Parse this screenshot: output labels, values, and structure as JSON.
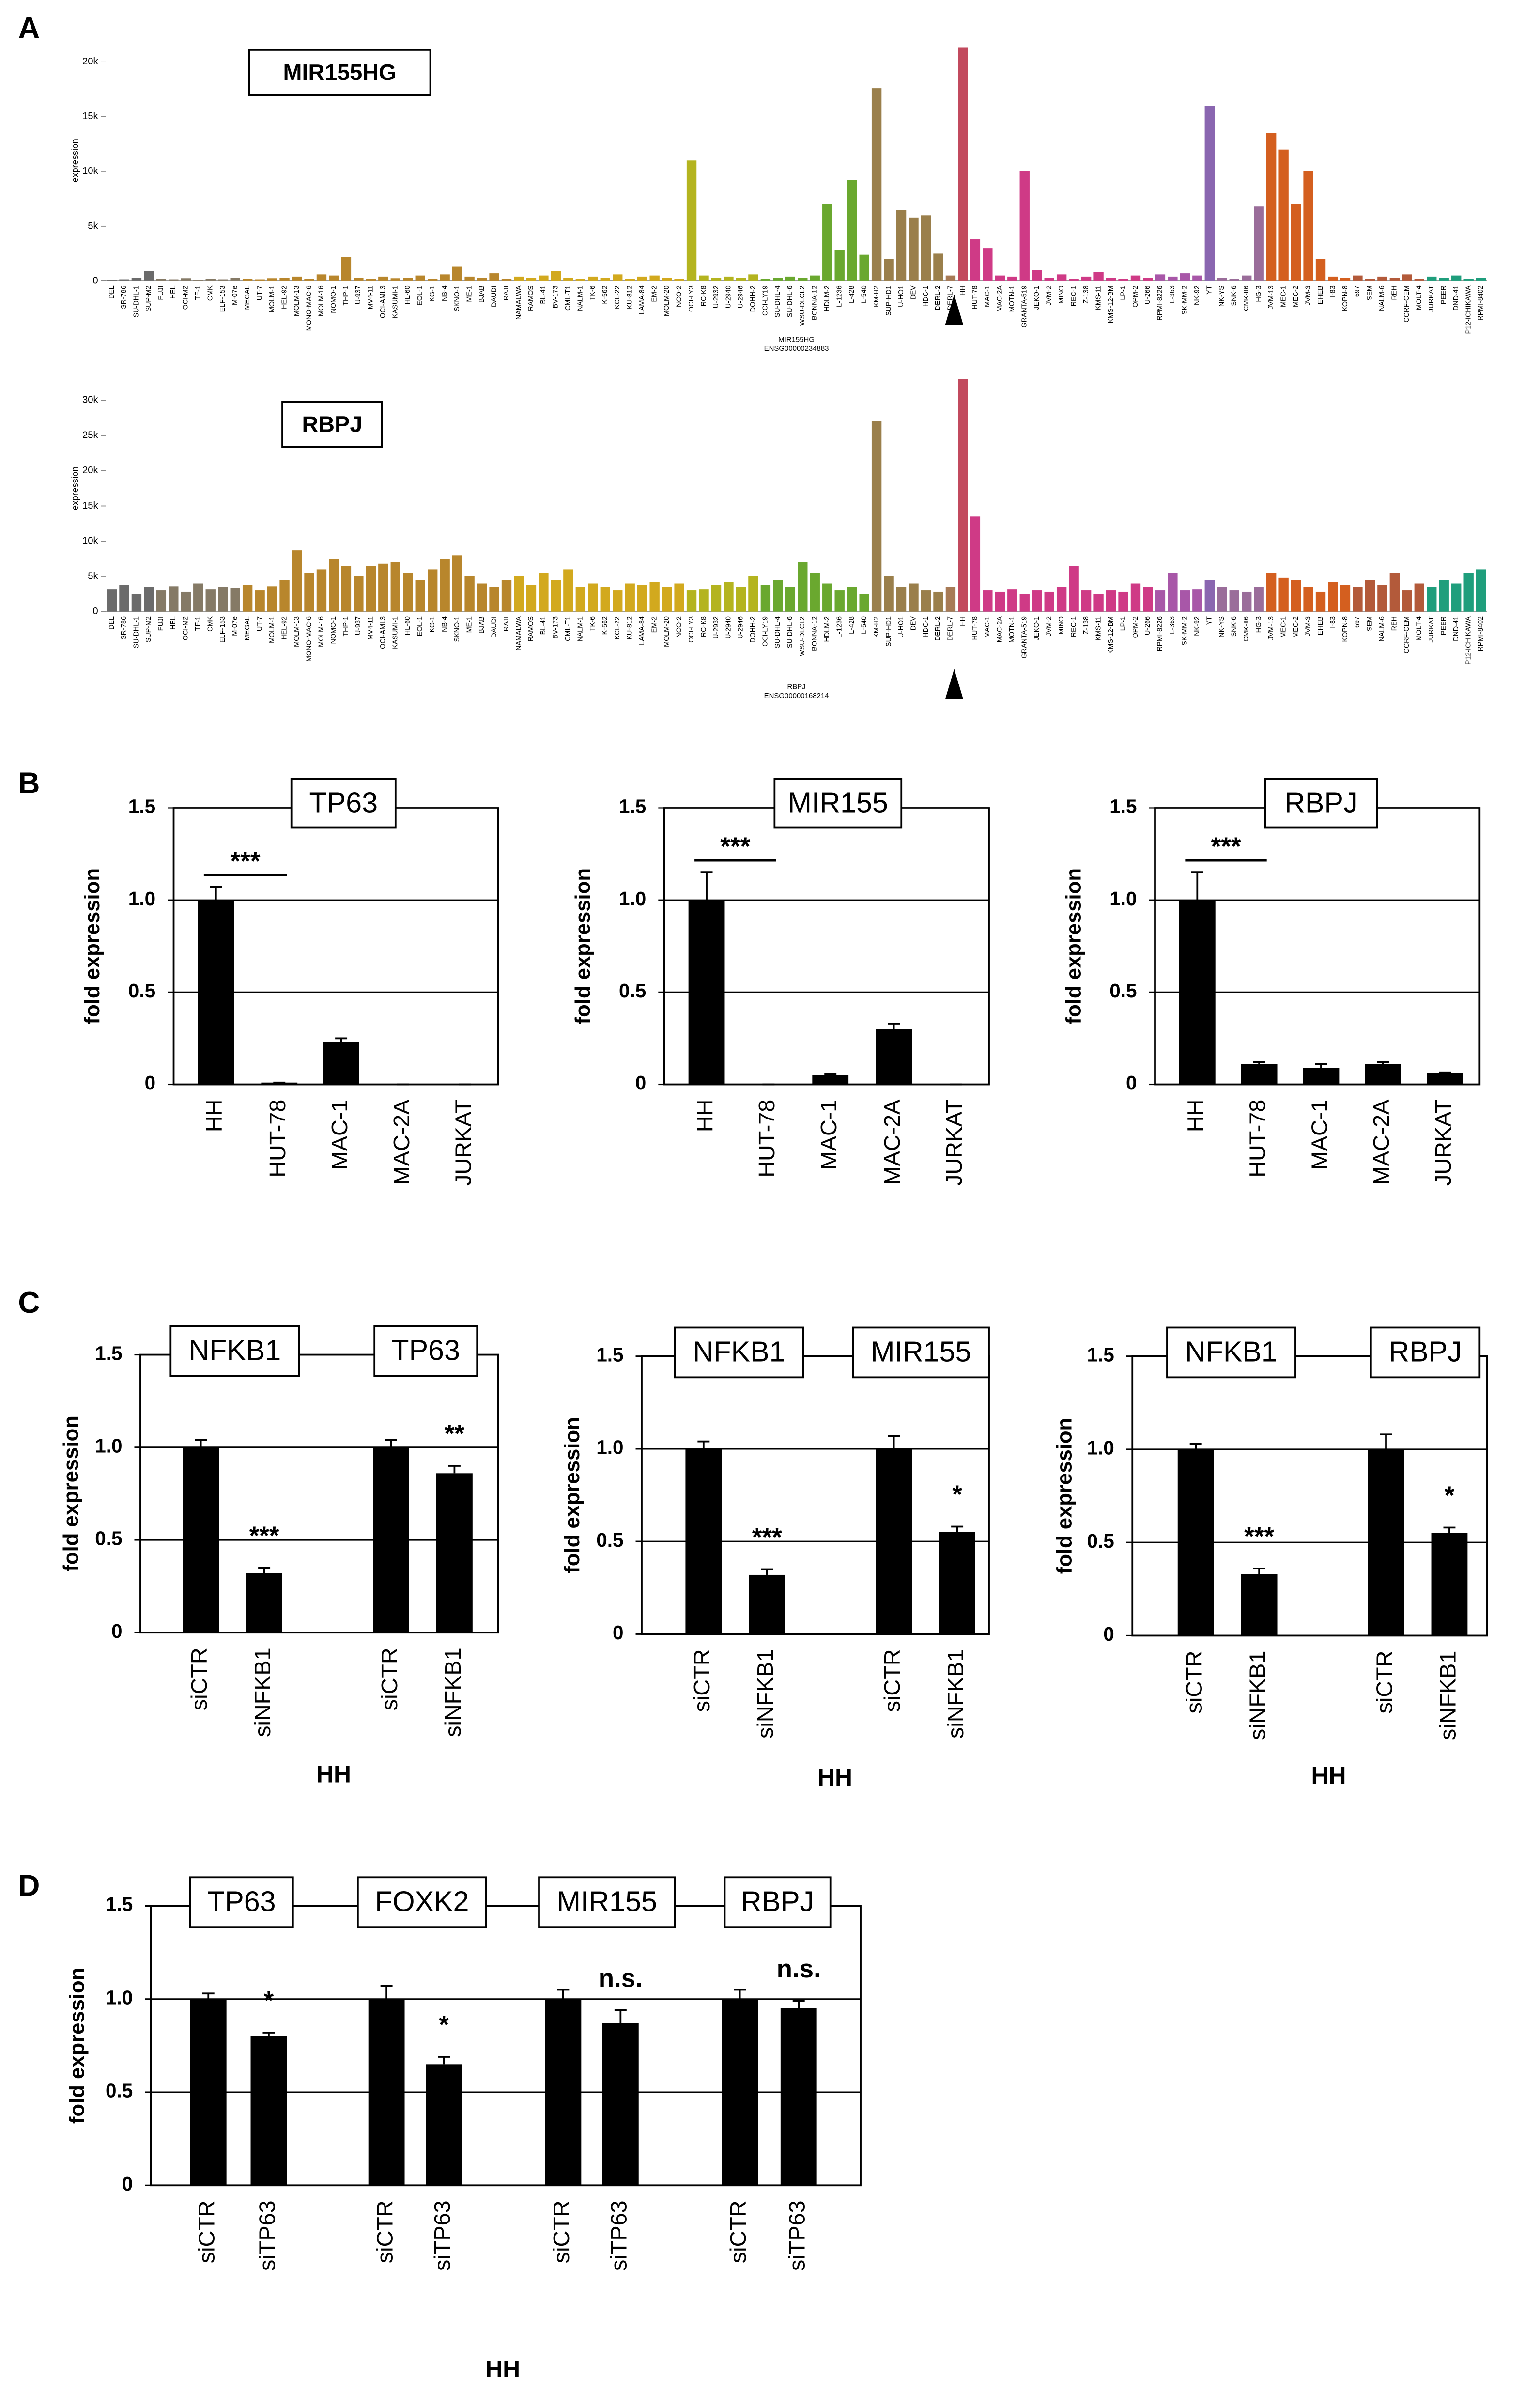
{
  "panels": [
    "A",
    "B",
    "C",
    "D"
  ],
  "chart_data": [
    {
      "type": "bar",
      "title": "MIR155HG",
      "xlabel": "MIR155HG",
      "xsublabel": "ENSG00000234883",
      "ylabel": "expression",
      "categories": [
        "DEL",
        "SR-786",
        "SU-DHL-1",
        "SUP-M2",
        "FUJI",
        "HEL",
        "OCI-M2",
        "TF-1",
        "CMK",
        "ELF-153",
        "M-07e",
        "MEGAL",
        "UT-7",
        "MOLM-1",
        "HEL-92",
        "MOLM-13",
        "MONO-MAC-6",
        "MOLM-16",
        "NOMO-1",
        "THP-1",
        "U-937",
        "MV4-11",
        "OCI-AML3",
        "KASUMI-1",
        "HL-60",
        "EOL-1",
        "KG-1",
        "NB-4",
        "SKNO-1",
        "ME-1",
        "BJAB",
        "DAUDI",
        "RAJI",
        "NAMALWA",
        "RAMOS",
        "BL-41",
        "BV-173",
        "CML-T1",
        "NALM-1",
        "TK-6",
        "K-562",
        "KCL-22",
        "KU-812",
        "LAMA-84",
        "EM-2",
        "MOLM-20",
        "NCO-2",
        "OCI-LY3",
        "RC-K8",
        "U-2932",
        "U-2940",
        "U-2946",
        "DOHH-2",
        "OCI-LY19",
        "SU-DHL-4",
        "SU-DHL-6",
        "WSU-DLCL2",
        "BONNA-12",
        "HDLM-2",
        "L-1236",
        "L-428",
        "L-540",
        "KM-H2",
        "SUP-HD1",
        "U-HO1",
        "DEV",
        "HDC-1",
        "DERL-2",
        "DERL-7",
        "HH",
        "HUT-78",
        "MAC-1",
        "MAC-2A",
        "MOTN-1",
        "GRANTA-519",
        "JEKO-1",
        "JVM-2",
        "MINO",
        "REC-1",
        "Z-138",
        "KMS-11",
        "KMS-12-BM",
        "LP-1",
        "OPM-2",
        "U-266",
        "RPMI-8226",
        "L-363",
        "SK-MM-2",
        "NK-92",
        "YT",
        "NK-YS",
        "SNK-6",
        "CMK-86",
        "HG-3",
        "JVM-13",
        "MEC-1",
        "MEC-2",
        "JVM-3",
        "EHEB",
        "I-83",
        "KOPN-8",
        "697",
        "SEM",
        "NALM-6",
        "REH",
        "CCRF-CEM",
        "MOLT-4",
        "JURKAT",
        "PEER",
        "DND-41",
        "P12-ICHIKAWA",
        "RPMI-8402"
      ],
      "values": [
        100,
        150,
        300,
        900,
        200,
        150,
        250,
        100,
        200,
        150,
        300,
        200,
        150,
        250,
        300,
        400,
        200,
        600,
        500,
        2200,
        300,
        200,
        400,
        250,
        300,
        500,
        200,
        600,
        1300,
        400,
        300,
        700,
        200,
        400,
        300,
        500,
        900,
        300,
        200,
        400,
        300,
        600,
        200,
        400,
        500,
        300,
        200,
        11000,
        500,
        300,
        400,
        300,
        600,
        200,
        300,
        400,
        300,
        500,
        7000,
        2800,
        9200,
        2400,
        17600,
        2000,
        6500,
        5800,
        6000,
        2500,
        500,
        21300,
        3800,
        3000,
        500,
        400,
        10000,
        1000,
        300,
        600,
        200,
        400,
        800,
        300,
        200,
        500,
        300,
        600,
        400,
        700,
        500,
        16000,
        300,
        200,
        500,
        6800,
        13500,
        12000,
        7000,
        10000,
        2000,
        400,
        300,
        500,
        200,
        400,
        300,
        600,
        200,
        400,
        300,
        500,
        200,
        300
      ],
      "colors": [
        "#6b6b6b",
        "#6b6b6b",
        "#6b6b6b",
        "#6b6b6b",
        "#857a66",
        "#857a66",
        "#857a66",
        "#857a66",
        "#857a66",
        "#857a66",
        "#857a66",
        "#b8862c",
        "#b8862c",
        "#b8862c",
        "#b8862c",
        "#b8862c",
        "#b8862c",
        "#b8862c",
        "#b8862c",
        "#b8862c",
        "#b8862c",
        "#b8862c",
        "#b8862c",
        "#b8862c",
        "#b8862c",
        "#b8862c",
        "#b8862c",
        "#b8862c",
        "#b8862c",
        "#b8862c",
        "#b8862c",
        "#b8862c",
        "#b8862c",
        "#d2a91e",
        "#d2a91e",
        "#d2a91e",
        "#d2a91e",
        "#d2a91e",
        "#d2a91e",
        "#d2a91e",
        "#d2a91e",
        "#d2a91e",
        "#d2a91e",
        "#d2a91e",
        "#d2a91e",
        "#d2a91e",
        "#d2a91e",
        "#b4b41f",
        "#b4b41f",
        "#b4b41f",
        "#b4b41f",
        "#b4b41f",
        "#b4b41f",
        "#6aa82f",
        "#6aa82f",
        "#6aa82f",
        "#6aa82f",
        "#6aa82f",
        "#6aa82f",
        "#6aa82f",
        "#6aa82f",
        "#6aa82f",
        "#9a7f4b",
        "#9a7f4b",
        "#9a7f4b",
        "#9a7f4b",
        "#9a7f4b",
        "#9a7f4b",
        "#a77a55",
        "#c24a5e",
        "#cf3a86",
        "#cf3a86",
        "#cf3a86",
        "#cf3a86",
        "#cf3a86",
        "#cf3a86",
        "#cf3a86",
        "#cf3a86",
        "#cf3a86",
        "#cf3a86",
        "#cf3a86",
        "#cf3a86",
        "#cf3a86",
        "#cf3a86",
        "#cf3a86",
        "#a857a8",
        "#a857a8",
        "#a857a8",
        "#a857a8",
        "#8a66b0",
        "#9a6d9a",
        "#9a6d9a",
        "#9a6d9a",
        "#9a6d9a",
        "#d45f1f",
        "#d45f1f",
        "#d45f1f",
        "#d45f1f",
        "#d45f1f",
        "#d45f1f",
        "#d45f1f",
        "#b35a3a",
        "#b35a3a",
        "#b35a3a",
        "#b35a3a",
        "#b35a3a",
        "#b35a3a",
        "#1f9e7c",
        "#1f9e7c",
        "#1f9e7c",
        "#1f9e7c",
        "#1f9e7c"
      ],
      "ylim": [
        0,
        22000
      ],
      "yticks": [
        0,
        {
          "value": 5000,
          "label": "5k"
        },
        {
          "value": 10000,
          "label": "10k"
        },
        {
          "value": 15000,
          "label": "15k"
        },
        {
          "value": 20000,
          "label": "20k"
        }
      ],
      "grid": false
    },
    {
      "type": "bar",
      "title": "RBPJ",
      "xlabel": "RBPJ",
      "xsublabel": "ENSG00000168214",
      "ylabel": "expression",
      "categories": [
        "DEL",
        "SR-786",
        "SU-DHL-1",
        "SUP-M2",
        "FUJI",
        "HEL",
        "OCI-M2",
        "TF-1",
        "CMK",
        "ELF-153",
        "M-07e",
        "MEGAL",
        "UT-7",
        "MOLM-1",
        "HEL-92",
        "MOLM-13",
        "MONO-MAC-6",
        "MOLM-16",
        "NOMO-1",
        "THP-1",
        "U-937",
        "MV4-11",
        "OCI-AML3",
        "KASUMI-1",
        "HL-60",
        "EOL-1",
        "KG-1",
        "NB-4",
        "SKNO-1",
        "ME-1",
        "BJAB",
        "DAUDI",
        "RAJI",
        "NAMALWA",
        "RAMOS",
        "BL-41",
        "BV-173",
        "CML-T1",
        "NALM-1",
        "TK-6",
        "K-562",
        "KCL-22",
        "KU-812",
        "LAMA-84",
        "EM-2",
        "MOLM-20",
        "NCO-2",
        "OCI-LY3",
        "RC-K8",
        "U-2932",
        "U-2940",
        "U-2946",
        "DOHH-2",
        "OCI-LY19",
        "SU-DHL-4",
        "SU-DHL-6",
        "WSU-DLCL2",
        "BONNA-12",
        "HDLM-2",
        "L-1236",
        "L-428",
        "L-540",
        "KM-H2",
        "SUP-HD1",
        "U-HO1",
        "DEV",
        "HDC-1",
        "DERL-2",
        "DERL-7",
        "HH",
        "HUT-78",
        "MAC-1",
        "MAC-2A",
        "MOTN-1",
        "GRANTA-519",
        "JEKO-1",
        "JVM-2",
        "MINO",
        "REC-1",
        "Z-138",
        "KMS-11",
        "KMS-12-BM",
        "LP-1",
        "OPM-2",
        "U-266",
        "RPMI-8226",
        "L-363",
        "SK-MM-2",
        "NK-92",
        "YT",
        "NK-YS",
        "SNK-6",
        "CMK-86",
        "HG-3",
        "JVM-13",
        "MEC-1",
        "MEC-2",
        "JVM-3",
        "EHEB",
        "I-83",
        "KOPN-8",
        "697",
        "SEM",
        "NALM-6",
        "REH",
        "CCRF-CEM",
        "MOLT-4",
        "JURKAT",
        "PEER",
        "DND-41",
        "P12-ICHIKAWA",
        "RPMI-8402"
      ],
      "values": [
        3200,
        3800,
        2500,
        3500,
        3000,
        3600,
        2800,
        4000,
        3200,
        3500,
        3400,
        3800,
        3000,
        3600,
        4500,
        8700,
        5500,
        6000,
        7500,
        6500,
        5000,
        6500,
        6800,
        7000,
        5500,
        4500,
        6000,
        7500,
        8000,
        5000,
        4000,
        3500,
        4500,
        5000,
        3800,
        5500,
        4500,
        6000,
        3500,
        4000,
        3500,
        3000,
        4000,
        3800,
        4200,
        3500,
        4000,
        3000,
        3200,
        3800,
        4200,
        3500,
        5000,
        3800,
        4500,
        3500,
        7000,
        5500,
        4000,
        3000,
        3500,
        2500,
        27000,
        5000,
        3500,
        4000,
        3000,
        2800,
        3500,
        33000,
        13500,
        3000,
        2800,
        3200,
        2500,
        3000,
        2800,
        3500,
        6500,
        3000,
        2500,
        3000,
        2800,
        4000,
        3500,
        3000,
        5500,
        3000,
        3200,
        4500,
        3500,
        3000,
        2800,
        3500,
        5500,
        4800,
        4500,
        3500,
        2800,
        4200,
        3800,
        3500,
        4500,
        3800,
        5500,
        3000,
        4000,
        3500,
        4500,
        4000,
        5500,
        6000
      ],
      "colors": [
        "#6b6b6b",
        "#6b6b6b",
        "#6b6b6b",
        "#6b6b6b",
        "#857a66",
        "#857a66",
        "#857a66",
        "#857a66",
        "#857a66",
        "#857a66",
        "#857a66",
        "#b8862c",
        "#b8862c",
        "#b8862c",
        "#b8862c",
        "#b8862c",
        "#b8862c",
        "#b8862c",
        "#b8862c",
        "#b8862c",
        "#b8862c",
        "#b8862c",
        "#b8862c",
        "#b8862c",
        "#b8862c",
        "#b8862c",
        "#b8862c",
        "#b8862c",
        "#b8862c",
        "#b8862c",
        "#b8862c",
        "#b8862c",
        "#b8862c",
        "#d2a91e",
        "#d2a91e",
        "#d2a91e",
        "#d2a91e",
        "#d2a91e",
        "#d2a91e",
        "#d2a91e",
        "#d2a91e",
        "#d2a91e",
        "#d2a91e",
        "#d2a91e",
        "#d2a91e",
        "#d2a91e",
        "#d2a91e",
        "#b4b41f",
        "#b4b41f",
        "#b4b41f",
        "#b4b41f",
        "#b4b41f",
        "#b4b41f",
        "#6aa82f",
        "#6aa82f",
        "#6aa82f",
        "#6aa82f",
        "#6aa82f",
        "#6aa82f",
        "#6aa82f",
        "#6aa82f",
        "#6aa82f",
        "#9a7f4b",
        "#9a7f4b",
        "#9a7f4b",
        "#9a7f4b",
        "#9a7f4b",
        "#9a7f4b",
        "#a77a55",
        "#c24a5e",
        "#cf3a86",
        "#cf3a86",
        "#cf3a86",
        "#cf3a86",
        "#cf3a86",
        "#cf3a86",
        "#cf3a86",
        "#cf3a86",
        "#cf3a86",
        "#cf3a86",
        "#cf3a86",
        "#cf3a86",
        "#cf3a86",
        "#cf3a86",
        "#cf3a86",
        "#a857a8",
        "#a857a8",
        "#a857a8",
        "#a857a8",
        "#8a66b0",
        "#9a6d9a",
        "#9a6d9a",
        "#9a6d9a",
        "#9a6d9a",
        "#d45f1f",
        "#d45f1f",
        "#d45f1f",
        "#d45f1f",
        "#d45f1f",
        "#d45f1f",
        "#d45f1f",
        "#b35a3a",
        "#b35a3a",
        "#b35a3a",
        "#b35a3a",
        "#b35a3a",
        "#b35a3a",
        "#1f9e7c",
        "#1f9e7c",
        "#1f9e7c",
        "#1f9e7c",
        "#1f9e7c"
      ],
      "ylim": [
        0,
        35000
      ],
      "yticks": [
        0,
        {
          "value": 5000,
          "label": "5k"
        },
        {
          "value": 10000,
          "label": "10k"
        },
        {
          "value": 15000,
          "label": "15k"
        },
        {
          "value": 20000,
          "label": "20k"
        },
        {
          "value": 25000,
          "label": "25k"
        },
        {
          "value": 30000,
          "label": "30k"
        }
      ],
      "grid": false
    },
    {
      "type": "bar",
      "title": "TP63",
      "ylabel": "fold expression",
      "categories": [
        "HH",
        "HUT-78",
        "MAC-1",
        "MAC-2A",
        "JURKAT"
      ],
      "values": [
        1.0,
        0.01,
        0.23,
        0,
        0
      ],
      "errors": [
        0.07,
        0,
        0.02,
        0,
        0
      ],
      "value_annotations": [
        "***",
        null,
        null,
        null,
        null
      ],
      "color": "#000000",
      "ylim": [
        0,
        1.5
      ],
      "yticks": [
        0,
        0.5,
        {
          "value": 1,
          "label": "1.0"
        },
        1.5
      ],
      "grid": true
    },
    {
      "type": "bar",
      "title": "MIR155",
      "ylabel": "fold expression",
      "categories": [
        "HH",
        "HUT-78",
        "MAC-1",
        "MAC-2A",
        "JURKAT"
      ],
      "values": [
        1.0,
        0,
        0.05,
        0.3,
        0
      ],
      "errors": [
        0.15,
        0,
        0.005,
        0.03,
        0
      ],
      "value_annotations": [
        "***",
        null,
        null,
        null,
        null
      ],
      "color": "#000000",
      "ylim": [
        0,
        1.5
      ],
      "yticks": [
        0,
        0.5,
        {
          "value": 1,
          "label": "1.0"
        },
        1.5
      ],
      "grid": true
    },
    {
      "type": "bar",
      "title": "RBPJ",
      "ylabel": "fold expression",
      "categories": [
        "HH",
        "HUT-78",
        "MAC-1",
        "MAC-2A",
        "JURKAT"
      ],
      "values": [
        1.0,
        0.11,
        0.09,
        0.11,
        0.06
      ],
      "errors": [
        0.15,
        0.01,
        0.02,
        0.01,
        0.005
      ],
      "value_annotations": [
        "***",
        null,
        null,
        null,
        null
      ],
      "color": "#000000",
      "ylim": [
        0,
        1.5
      ],
      "yticks": [
        0,
        0.5,
        {
          "value": 1,
          "label": "1.0"
        },
        1.5
      ],
      "grid": true
    },
    {
      "type": "bar",
      "groups": [
        "NFKB1",
        "TP63"
      ],
      "xlabel": "HH",
      "ylabel": "fold expression",
      "categories": [
        "siCTR",
        "siNFKB1",
        "siCTR",
        "siNFKB1"
      ],
      "values": [
        1.0,
        0.32,
        1.0,
        0.86
      ],
      "errors": [
        0.04,
        0.03,
        0.04,
        0.04
      ],
      "value_annotations": [
        null,
        "***",
        null,
        "**"
      ],
      "color": "#000000",
      "ylim": [
        0,
        1.5
      ],
      "yticks": [
        0,
        0.5,
        {
          "value": 1,
          "label": "1.0"
        },
        1.5
      ],
      "grid": true
    },
    {
      "type": "bar",
      "groups": [
        "NFKB1",
        "MIR155"
      ],
      "xlabel": "HH",
      "ylabel": "fold expression",
      "categories": [
        "siCTR",
        "siNFKB1",
        "siCTR",
        "siNFKB1"
      ],
      "values": [
        1.0,
        0.32,
        1.0,
        0.55
      ],
      "errors": [
        0.04,
        0.03,
        0.07,
        0.03
      ],
      "value_annotations": [
        null,
        "***",
        null,
        "*"
      ],
      "color": "#000000",
      "ylim": [
        0,
        1.5
      ],
      "yticks": [
        0,
        0.5,
        {
          "value": 1,
          "label": "1.0"
        },
        1.5
      ],
      "grid": true
    },
    {
      "type": "bar",
      "groups": [
        "NFKB1",
        "RBPJ"
      ],
      "xlabel": "HH",
      "ylabel": "fold expression",
      "categories": [
        "siCTR",
        "siNFKB1",
        "siCTR",
        "siNFKB1"
      ],
      "values": [
        1.0,
        0.33,
        1.0,
        0.55
      ],
      "errors": [
        0.03,
        0.03,
        0.08,
        0.03
      ],
      "value_annotations": [
        null,
        "***",
        null,
        "*"
      ],
      "color": "#000000",
      "ylim": [
        0,
        1.5
      ],
      "yticks": [
        0,
        0.5,
        {
          "value": 1,
          "label": "1.0"
        },
        1.5
      ],
      "grid": true
    },
    {
      "type": "bar",
      "groups": [
        "TP63",
        "FOXK2",
        "MIR155",
        "RBPJ"
      ],
      "xlabel": "HH",
      "ylabel": "fold expression",
      "categories": [
        "siCTR",
        "siTP63",
        "siCTR",
        "siTP63",
        "siCTR",
        "siTP63",
        "siCTR",
        "siTP63"
      ],
      "values": [
        1.0,
        0.8,
        1.0,
        0.65,
        1.0,
        0.87,
        1.0,
        0.95
      ],
      "errors": [
        0.03,
        0.02,
        0.07,
        0.04,
        0.05,
        0.07,
        0.05,
        0.04
      ],
      "value_annotations": [
        null,
        "*",
        null,
        "*",
        null,
        "n.s.",
        null,
        "n.s."
      ],
      "color": "#000000",
      "ylim": [
        0,
        1.5
      ],
      "yticks": [
        0,
        0.5,
        {
          "value": 1,
          "label": "1.0"
        },
        1.5
      ],
      "grid": true
    }
  ]
}
